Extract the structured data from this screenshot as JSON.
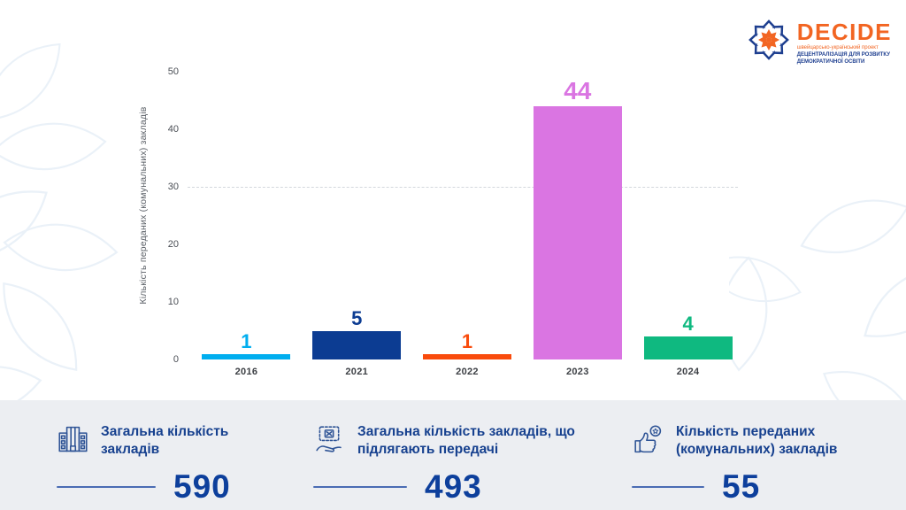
{
  "logo": {
    "name": "DECIDE",
    "tagline1": "швейцарсько-український проект",
    "tagline2": "ДЕЦЕНТРАЛІЗАЦІЯ ДЛЯ РОЗВИТКУ",
    "tagline3": "ДЕМОКРАТИЧНОЇ ОСВІТИ",
    "orange": "#F26522",
    "blue": "#1D3E8F"
  },
  "chart_data": {
    "type": "bar",
    "categories": [
      "2016",
      "2021",
      "2022",
      "2023",
      "2024"
    ],
    "values": [
      1,
      5,
      1,
      44,
      4
    ],
    "bar_colors": [
      "#00AEEF",
      "#0C3C92",
      "#F94B0C",
      "#DA75E2",
      "#0FB980"
    ],
    "title": "",
    "xlabel": "",
    "ylabel": "Кількість переданих (комунальних) закладів",
    "ylim": [
      0,
      50
    ],
    "yticks": [
      0,
      10,
      20,
      30,
      40,
      50
    ],
    "gridline_at": 30,
    "grid": "single dashed horizontal line at y=30 only",
    "legend": "none",
    "value_labels": "above each bar, colored same as bar"
  },
  "stats": [
    {
      "icon": "building-icon",
      "label": "Загальна кількість закладів",
      "value": "590"
    },
    {
      "icon": "handover-icon",
      "label": "Загальна кількість закладів, що підлягають передачі",
      "value": "493"
    },
    {
      "icon": "thumbs-up-icon",
      "label": "Кількість переданих (комунальних) закладів",
      "value": "55"
    }
  ],
  "colors": {
    "stats_strip_bg": "#ECEEF2",
    "stats_text": "#17418F",
    "stats_value": "#0D3F9C",
    "watermark_stroke": "#EAF1F8",
    "tick_text": "#4A4E55"
  }
}
